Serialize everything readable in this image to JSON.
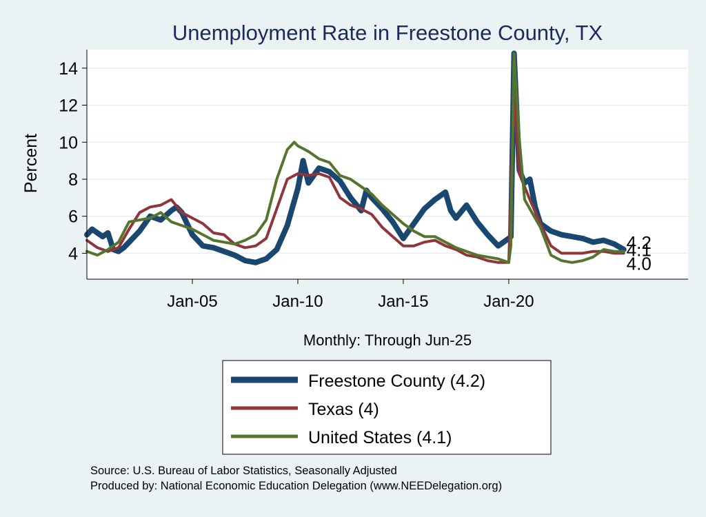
{
  "chart_data": {
    "type": "line",
    "title": "Unemployment Rate in Freestone  County, TX",
    "xlabel": "Monthly: Through Jun-25",
    "ylabel": "Percent",
    "xlim": [
      2000.0,
      2028.5
    ],
    "ylim": [
      2.6,
      15.0
    ],
    "x_ticks": [
      {
        "value": 2005.0,
        "label": "Jan-05"
      },
      {
        "value": 2010.0,
        "label": "Jan-10"
      },
      {
        "value": 2015.0,
        "label": "Jan-15"
      },
      {
        "value": 2020.0,
        "label": "Jan-20"
      }
    ],
    "y_ticks": [
      4,
      6,
      8,
      10,
      12,
      14
    ],
    "end_labels": [
      {
        "text": "4.2",
        "value": 4.2
      },
      {
        "text": "4.1",
        "value": 4.1
      },
      {
        "text": "4.0",
        "value": 4.0
      }
    ],
    "series": [
      {
        "name": "Freestone  County",
        "legend_label": "Freestone  County (4.2)",
        "color": "#1a476f",
        "points": [
          [
            2000.0,
            5.0
          ],
          [
            2000.25,
            5.3
          ],
          [
            2000.5,
            5.1
          ],
          [
            2000.75,
            4.9
          ],
          [
            2001.0,
            5.1
          ],
          [
            2001.25,
            4.2
          ],
          [
            2001.5,
            4.1
          ],
          [
            2001.75,
            4.3
          ],
          [
            2002.0,
            4.6
          ],
          [
            2002.5,
            5.2
          ],
          [
            2003.0,
            6.0
          ],
          [
            2003.5,
            5.8
          ],
          [
            2004.0,
            6.3
          ],
          [
            2004.25,
            6.5
          ],
          [
            2004.5,
            6.2
          ],
          [
            2005.0,
            5.0
          ],
          [
            2005.5,
            4.4
          ],
          [
            2006.0,
            4.3
          ],
          [
            2006.5,
            4.1
          ],
          [
            2007.0,
            3.9
          ],
          [
            2007.5,
            3.6
          ],
          [
            2008.0,
            3.5
          ],
          [
            2008.5,
            3.7
          ],
          [
            2009.0,
            4.2
          ],
          [
            2009.5,
            5.5
          ],
          [
            2010.0,
            7.5
          ],
          [
            2010.25,
            9.0
          ],
          [
            2010.5,
            7.8
          ],
          [
            2011.0,
            8.6
          ],
          [
            2011.5,
            8.4
          ],
          [
            2012.0,
            7.9
          ],
          [
            2012.5,
            7.0
          ],
          [
            2013.0,
            6.3
          ],
          [
            2013.25,
            7.4
          ],
          [
            2013.5,
            7.0
          ],
          [
            2014.0,
            6.4
          ],
          [
            2014.5,
            5.7
          ],
          [
            2015.0,
            4.8
          ],
          [
            2015.5,
            5.6
          ],
          [
            2016.0,
            6.4
          ],
          [
            2016.5,
            6.9
          ],
          [
            2017.0,
            7.3
          ],
          [
            2017.25,
            6.3
          ],
          [
            2017.5,
            5.9
          ],
          [
            2018.0,
            6.6
          ],
          [
            2018.5,
            5.7
          ],
          [
            2019.0,
            5.0
          ],
          [
            2019.5,
            4.4
          ],
          [
            2020.0,
            4.8
          ],
          [
            2020.1,
            4.9
          ],
          [
            2020.25,
            14.8
          ],
          [
            2020.5,
            8.5
          ],
          [
            2020.75,
            7.8
          ],
          [
            2021.0,
            8.0
          ],
          [
            2021.25,
            6.5
          ],
          [
            2021.5,
            5.6
          ],
          [
            2022.0,
            5.2
          ],
          [
            2022.5,
            5.0
          ],
          [
            2023.0,
            4.9
          ],
          [
            2023.5,
            4.8
          ],
          [
            2024.0,
            4.6
          ],
          [
            2024.5,
            4.7
          ],
          [
            2025.0,
            4.5
          ],
          [
            2025.45,
            4.2
          ]
        ]
      },
      {
        "name": "Texas",
        "legend_label": "Texas (4)",
        "color": "#90353b",
        "points": [
          [
            2000.0,
            4.7
          ],
          [
            2000.5,
            4.3
          ],
          [
            2001.0,
            4.1
          ],
          [
            2001.5,
            4.3
          ],
          [
            2002.0,
            5.3
          ],
          [
            2002.5,
            6.2
          ],
          [
            2003.0,
            6.5
          ],
          [
            2003.5,
            6.6
          ],
          [
            2004.0,
            6.9
          ],
          [
            2004.5,
            6.2
          ],
          [
            2005.0,
            5.9
          ],
          [
            2005.5,
            5.6
          ],
          [
            2006.0,
            5.1
          ],
          [
            2006.5,
            5.0
          ],
          [
            2007.0,
            4.5
          ],
          [
            2007.5,
            4.3
          ],
          [
            2008.0,
            4.4
          ],
          [
            2008.5,
            4.8
          ],
          [
            2009.0,
            6.4
          ],
          [
            2009.5,
            8.0
          ],
          [
            2010.0,
            8.3
          ],
          [
            2010.5,
            8.2
          ],
          [
            2011.0,
            8.3
          ],
          [
            2011.5,
            8.1
          ],
          [
            2012.0,
            7.0
          ],
          [
            2012.5,
            6.6
          ],
          [
            2013.0,
            6.4
          ],
          [
            2013.5,
            6.1
          ],
          [
            2014.0,
            5.4
          ],
          [
            2014.5,
            4.9
          ],
          [
            2015.0,
            4.4
          ],
          [
            2015.5,
            4.4
          ],
          [
            2016.0,
            4.6
          ],
          [
            2016.5,
            4.7
          ],
          [
            2017.0,
            4.4
          ],
          [
            2017.5,
            4.2
          ],
          [
            2018.0,
            3.9
          ],
          [
            2018.5,
            3.8
          ],
          [
            2019.0,
            3.6
          ],
          [
            2019.5,
            3.5
          ],
          [
            2020.0,
            3.5
          ],
          [
            2020.25,
            12.5
          ],
          [
            2020.5,
            8.3
          ],
          [
            2021.0,
            6.9
          ],
          [
            2021.5,
            5.6
          ],
          [
            2022.0,
            4.4
          ],
          [
            2022.5,
            4.0
          ],
          [
            2023.0,
            4.0
          ],
          [
            2023.5,
            4.0
          ],
          [
            2024.0,
            4.1
          ],
          [
            2024.5,
            4.1
          ],
          [
            2025.0,
            4.0
          ],
          [
            2025.45,
            4.0
          ]
        ]
      },
      {
        "name": "United States",
        "legend_label": "United States (4.1)",
        "color": "#55752f",
        "points": [
          [
            2000.0,
            4.1
          ],
          [
            2000.5,
            3.9
          ],
          [
            2001.0,
            4.2
          ],
          [
            2001.5,
            4.6
          ],
          [
            2002.0,
            5.7
          ],
          [
            2002.5,
            5.8
          ],
          [
            2003.0,
            5.9
          ],
          [
            2003.5,
            6.2
          ],
          [
            2004.0,
            5.7
          ],
          [
            2004.5,
            5.5
          ],
          [
            2005.0,
            5.3
          ],
          [
            2005.5,
            5.0
          ],
          [
            2006.0,
            4.7
          ],
          [
            2006.5,
            4.6
          ],
          [
            2007.0,
            4.5
          ],
          [
            2007.5,
            4.7
          ],
          [
            2008.0,
            5.0
          ],
          [
            2008.5,
            5.8
          ],
          [
            2009.0,
            8.0
          ],
          [
            2009.5,
            9.6
          ],
          [
            2009.83,
            10.0
          ],
          [
            2010.0,
            9.8
          ],
          [
            2010.5,
            9.5
          ],
          [
            2011.0,
            9.1
          ],
          [
            2011.5,
            8.9
          ],
          [
            2012.0,
            8.2
          ],
          [
            2012.5,
            8.0
          ],
          [
            2013.0,
            7.6
          ],
          [
            2013.5,
            7.2
          ],
          [
            2014.0,
            6.6
          ],
          [
            2014.5,
            6.1
          ],
          [
            2015.0,
            5.6
          ],
          [
            2015.5,
            5.2
          ],
          [
            2016.0,
            4.9
          ],
          [
            2016.5,
            4.9
          ],
          [
            2017.0,
            4.6
          ],
          [
            2017.5,
            4.3
          ],
          [
            2018.0,
            4.1
          ],
          [
            2018.5,
            3.9
          ],
          [
            2019.0,
            3.8
          ],
          [
            2019.5,
            3.7
          ],
          [
            2020.0,
            3.5
          ],
          [
            2020.1,
            4.4
          ],
          [
            2020.25,
            14.8
          ],
          [
            2020.5,
            10.2
          ],
          [
            2020.75,
            6.9
          ],
          [
            2021.0,
            6.4
          ],
          [
            2021.5,
            5.4
          ],
          [
            2022.0,
            3.9
          ],
          [
            2022.5,
            3.6
          ],
          [
            2023.0,
            3.5
          ],
          [
            2023.5,
            3.6
          ],
          [
            2024.0,
            3.8
          ],
          [
            2024.5,
            4.2
          ],
          [
            2025.0,
            4.1
          ],
          [
            2025.45,
            4.1
          ]
        ]
      }
    ]
  },
  "source_text": "Source: U.S. Bureau of Labor Statistics, Seasonally Adjusted",
  "produced_text": "Produced by: National Economic Education Delegation (www.NEEDelegation.org)"
}
